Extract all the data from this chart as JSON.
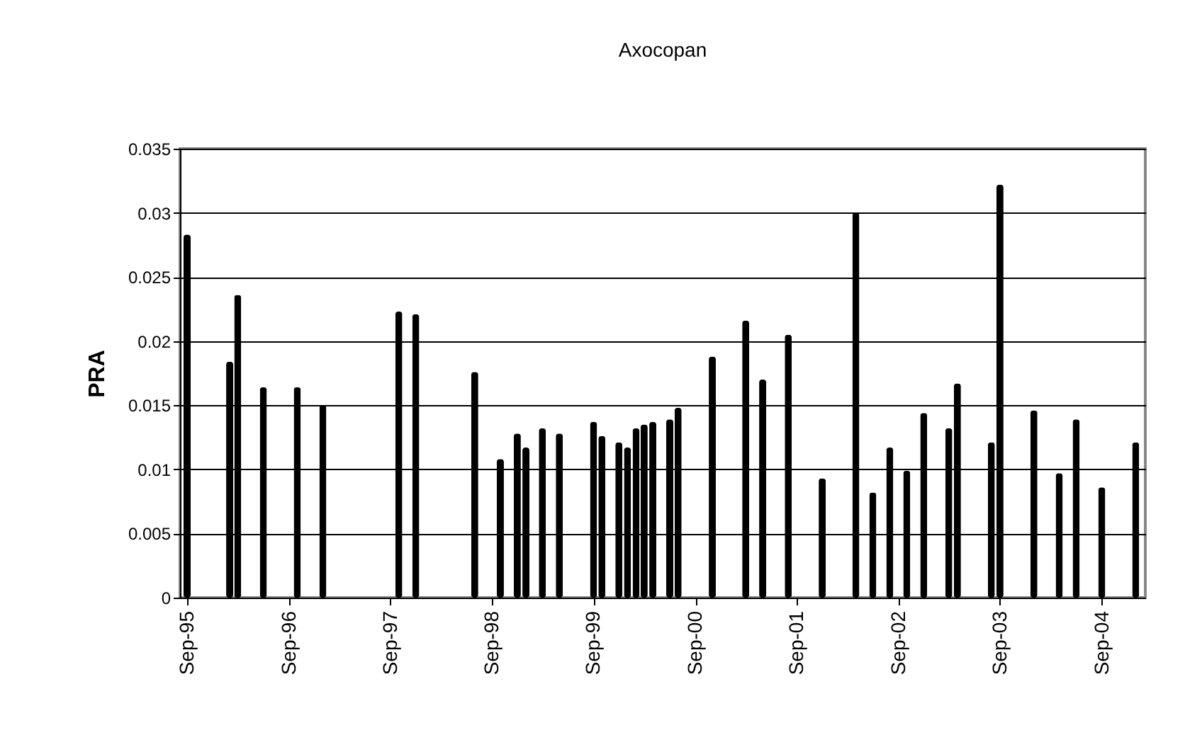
{
  "chart_data": {
    "type": "bar",
    "title": "Axocopan",
    "ylabel": "PRA",
    "x": [
      "1995-09-01",
      "1996-02-01",
      "1996-03-01",
      "1996-06-01",
      "1996-10-01",
      "1997-01-01",
      "1997-10-01",
      "1997-12-01",
      "1998-07-01",
      "1998-10-01",
      "1998-12-01",
      "1999-01-01",
      "1999-03-01",
      "1999-05-01",
      "1999-09-01",
      "1999-10-01",
      "1999-12-01",
      "2000-01-01",
      "2000-02-01",
      "2000-03-01",
      "2000-04-01",
      "2000-06-01",
      "2000-07-01",
      "2000-11-01",
      "2001-03-01",
      "2001-05-01",
      "2001-08-01",
      "2001-12-01",
      "2002-04-01",
      "2002-06-01",
      "2002-08-01",
      "2002-10-01",
      "2002-12-01",
      "2003-03-01",
      "2003-04-01",
      "2003-08-01",
      "2003-09-01",
      "2004-01-01",
      "2004-04-01",
      "2004-06-01",
      "2004-09-01",
      "2005-01-01"
    ],
    "values": [
      0.0283,
      0.0184,
      0.0236,
      0.0164,
      0.0164,
      0.015,
      0.0223,
      0.0221,
      0.0176,
      0.0108,
      0.0128,
      0.0117,
      0.0132,
      0.0128,
      0.0137,
      0.0126,
      0.0121,
      0.0117,
      0.0132,
      0.0135,
      0.0137,
      0.0139,
      0.0148,
      0.0188,
      0.0216,
      0.017,
      0.0205,
      0.0093,
      0.03,
      0.0082,
      0.0117,
      0.0099,
      0.0144,
      0.0132,
      0.0167,
      0.0121,
      0.0322,
      0.0146,
      0.0097,
      0.0139,
      0.0086,
      0.0121
    ],
    "color": "#000000",
    "xlim": [
      "1995-09-01",
      "2005-01-10"
    ],
    "xticks": [
      {
        "value": "1995-09-01",
        "label": "Sep-95"
      },
      {
        "value": "1996-09-01",
        "label": "Sep-96"
      },
      {
        "value": "1997-09-01",
        "label": "Sep-97"
      },
      {
        "value": "1998-09-01",
        "label": "Sep-98"
      },
      {
        "value": "1999-09-01",
        "label": "Sep-99"
      },
      {
        "value": "2000-09-01",
        "label": "Sep-00"
      },
      {
        "value": "2001-09-01",
        "label": "Sep-01"
      },
      {
        "value": "2002-09-01",
        "label": "Sep-02"
      },
      {
        "value": "2003-09-01",
        "label": "Sep-03"
      },
      {
        "value": "2004-09-01",
        "label": "Sep-04"
      }
    ],
    "ylim": [
      0,
      0.035
    ],
    "yticks": [
      0,
      0.005,
      0.01,
      0.015,
      0.02,
      0.025,
      0.03,
      0.035
    ],
    "grid": "y"
  }
}
